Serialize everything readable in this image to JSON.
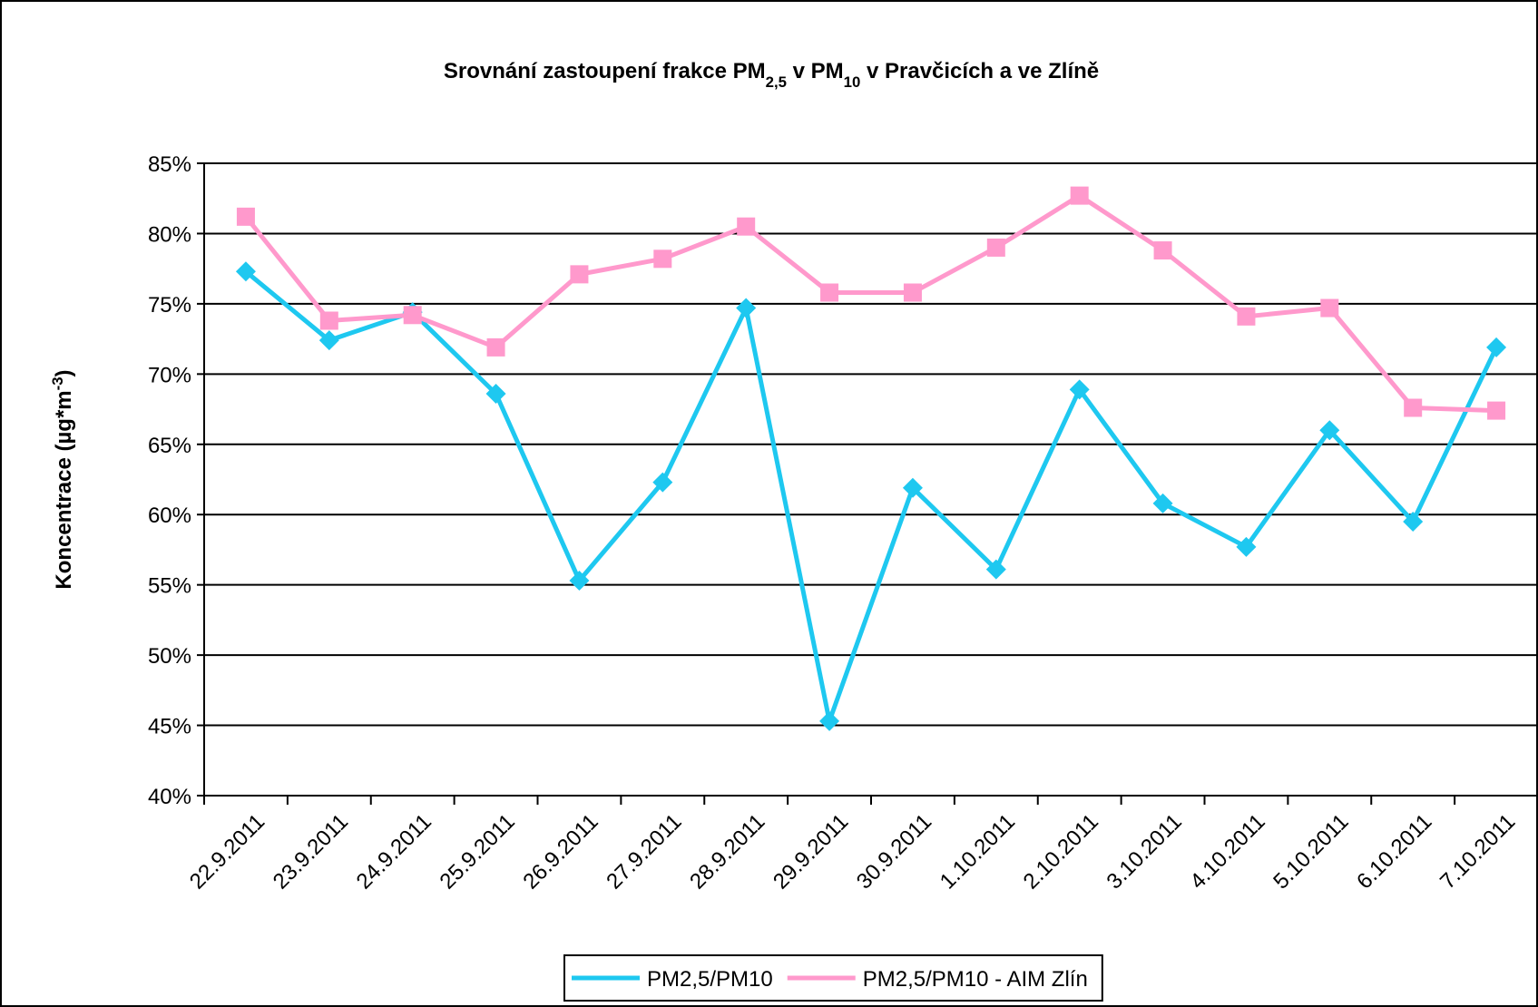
{
  "chart_data": {
    "type": "line",
    "title": [
      {
        "text": "Srovnání zastoupení frakce PM"
      },
      {
        "text": "2,5",
        "sub": true
      },
      {
        "text": " v PM"
      },
      {
        "text": "10",
        "sub": true
      },
      {
        "text": " v Pravčicích a ve Zlíně"
      }
    ],
    "y_label": [
      {
        "text": "Koncentrace (µg*m"
      },
      {
        "text": "-3",
        "sup": true
      },
      {
        "text": ")"
      }
    ],
    "categories": [
      "22.9.2011",
      "23.9.2011",
      "24.9.2011",
      "25.9.2011",
      "26.9.2011",
      "27.9.2011",
      "28.9.2011",
      "29.9.2011",
      "30.9.2011",
      "1.10.2011",
      "2.10.2011",
      "3.10.2011",
      "4.10.2011",
      "5.10.2011",
      "6.10.2011",
      "7.10.2011"
    ],
    "series": [
      {
        "name": "PM2,5/PM10",
        "color": "#1ec8f0",
        "marker": "diamond",
        "values": [
          77.3,
          72.4,
          74.4,
          68.6,
          55.3,
          62.3,
          74.7,
          45.3,
          61.9,
          56.1,
          68.9,
          60.8,
          57.7,
          66.0,
          59.5,
          71.9
        ]
      },
      {
        "name": "PM2,5/PM10 - AIM Zlín",
        "color": "#ff99cc",
        "marker": "square",
        "values": [
          81.2,
          73.8,
          74.2,
          71.9,
          77.1,
          78.2,
          80.5,
          75.8,
          75.8,
          79.0,
          82.7,
          78.8,
          74.1,
          74.7,
          67.6,
          67.4
        ]
      }
    ],
    "ylim": [
      40,
      85
    ],
    "yticks": [
      {
        "value": 40,
        "label": "40%"
      },
      {
        "value": 45,
        "label": "45%"
      },
      {
        "value": 50,
        "label": "50%"
      },
      {
        "value": 55,
        "label": "55%"
      },
      {
        "value": 60,
        "label": "60%"
      },
      {
        "value": 65,
        "label": "65%"
      },
      {
        "value": 70,
        "label": "70%"
      },
      {
        "value": 75,
        "label": "75%"
      },
      {
        "value": 80,
        "label": "80%"
      },
      {
        "value": 85,
        "label": "85%"
      }
    ],
    "grid": true,
    "legend": "bottom"
  }
}
